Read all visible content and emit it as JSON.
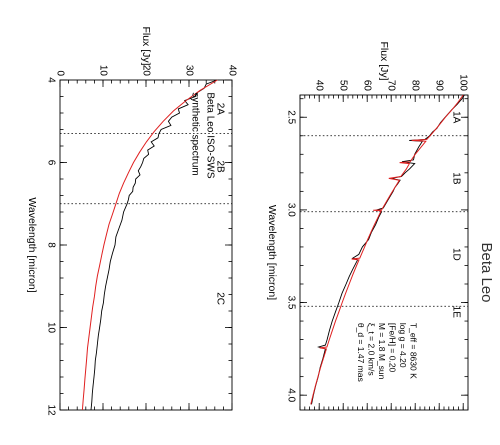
{
  "chart_data": [
    {
      "type": "line",
      "title": "Beta Leo",
      "xlabel": "Wavelength [micron]",
      "ylabel": "Flux [Jy]",
      "xlim": [
        2.38,
        4.08
      ],
      "ylim": [
        32,
        102
      ],
      "xticks": [
        2.5,
        3.0,
        3.5,
        4.0
      ],
      "yticks": [
        40,
        50,
        60,
        70,
        80,
        90,
        100
      ],
      "band_dividers": [
        2.6,
        3.01,
        3.52
      ],
      "bands": [
        {
          "label": "1A",
          "x": 2.5
        },
        {
          "label": "1B",
          "x": 2.83
        },
        {
          "label": "1D",
          "x": 3.24
        },
        {
          "label": "1E",
          "x": 3.55
        }
      ],
      "stellar_params": [
        "T_eff = 8630 K",
        "log g = 4.20",
        "[Fe/H] = 0.20",
        "M = 1.8 M_sun",
        "ξ_t = 2.0 km/s",
        "θ_d = 1.47 mas"
      ],
      "series": [
        {
          "name": "",
          "color": "#000000",
          "x": [
            2.38,
            2.4,
            2.43,
            2.46,
            2.5,
            2.53,
            2.56,
            2.58,
            2.6,
            2.62,
            2.625,
            2.63,
            2.66,
            2.7,
            2.73,
            2.74,
            2.75,
            2.78,
            2.8,
            2.82,
            2.83,
            2.84,
            2.86,
            2.88,
            2.9,
            2.95,
            2.99,
            3.0,
            3.01,
            3.04,
            3.08,
            3.12,
            3.16,
            3.2,
            3.24,
            3.26,
            3.27,
            3.28,
            3.32,
            3.36,
            3.4,
            3.45,
            3.5,
            3.55,
            3.6,
            3.65,
            3.7,
            3.73,
            3.74,
            3.75,
            3.8,
            3.85,
            3.9,
            3.95,
            4.0,
            4.05
          ],
          "y": [
            100.5,
            99.5,
            97.5,
            95.2,
            92.5,
            90.5,
            89.0,
            87.2,
            86.0,
            84.0,
            77.5,
            83.0,
            81.5,
            79.8,
            79.3,
            74.5,
            79.8,
            77.6,
            75.8,
            74.3,
            70.0,
            73.7,
            72.7,
            71.5,
            70.8,
            68.5,
            66.7,
            64.0,
            66.0,
            64.8,
            63.5,
            61.8,
            60.6,
            58.0,
            56.5,
            54.0,
            56.0,
            55.6,
            54.0,
            52.5,
            51.2,
            49.5,
            48.2,
            46.8,
            45.4,
            44.3,
            43.3,
            42.6,
            39.8,
            42.6,
            41.6,
            40.4,
            39.6,
            38.5,
            37.6,
            36.8
          ]
        },
        {
          "name": "",
          "color": "#e02020",
          "x": [
            2.38,
            2.42,
            2.46,
            2.5,
            2.55,
            2.6,
            2.62,
            2.625,
            2.63,
            2.66,
            2.7,
            2.74,
            2.745,
            2.75,
            2.78,
            2.82,
            2.83,
            2.84,
            2.88,
            2.92,
            2.96,
            3.0,
            3.002,
            3.005,
            3.04,
            3.08,
            3.12,
            3.16,
            3.2,
            3.26,
            3.265,
            3.27,
            3.3,
            3.35,
            3.4,
            3.45,
            3.5,
            3.55,
            3.6,
            3.65,
            3.7,
            3.74,
            3.745,
            3.75,
            3.8,
            3.85,
            3.9,
            3.95,
            4.0,
            4.05
          ],
          "y": [
            100.0,
            97.8,
            95.3,
            92.6,
            89.5,
            86.2,
            84.8,
            78.5,
            84.4,
            82.5,
            80.0,
            77.9,
            73.5,
            77.6,
            76.3,
            74.0,
            69.0,
            73.4,
            71.5,
            69.6,
            67.8,
            66.0,
            62.5,
            65.8,
            64.5,
            63.0,
            61.6,
            60.2,
            58.9,
            56.9,
            53.5,
            56.6,
            55.6,
            54.0,
            52.5,
            51.0,
            49.6,
            48.2,
            46.8,
            45.5,
            44.2,
            43.2,
            40.2,
            43.0,
            41.8,
            40.6,
            39.5,
            38.4,
            37.4,
            36.5
          ]
        }
      ]
    },
    {
      "type": "line",
      "title": "",
      "xlabel": "Wavelength [micron]",
      "ylabel": "Flux [Jy]",
      "xlim": [
        4.0,
        12.0
      ],
      "ylim": [
        0,
        40
      ],
      "xticks": [
        4,
        6,
        8,
        10,
        12
      ],
      "yticks": [
        0,
        10,
        20,
        30,
        40
      ],
      "band_dividers": [
        5.3,
        7.0
      ],
      "bands": [
        {
          "label": "2A",
          "x": 4.7
        },
        {
          "label": "2B",
          "x": 6.1
        },
        {
          "label": "2C",
          "x": 9.3
        }
      ],
      "legend": [
        "Beta Leo ISO-SWS",
        "synthetic spectrum"
      ],
      "series": [
        {
          "name": "Beta Leo ISO-SWS",
          "color": "#000000",
          "x": [
            4.0,
            4.1,
            4.2,
            4.3,
            4.4,
            4.5,
            4.6,
            4.7,
            4.8,
            4.9,
            5.0,
            5.1,
            5.2,
            5.3,
            5.4,
            5.5,
            5.6,
            5.7,
            5.8,
            5.9,
            6.0,
            6.1,
            6.2,
            6.3,
            6.4,
            6.5,
            6.6,
            6.7,
            6.8,
            6.9,
            7.0,
            7.2,
            7.4,
            7.6,
            7.8,
            8.0,
            8.2,
            8.4,
            8.6,
            8.8,
            9.0,
            9.2,
            9.4,
            9.6,
            9.8,
            10.0,
            10.2,
            10.4,
            10.6,
            10.8,
            11.0,
            11.2,
            11.4,
            11.6,
            11.8,
            12.0
          ],
          "y": [
            36.5,
            34.0,
            33.5,
            32.0,
            31.5,
            29.0,
            29.8,
            27.5,
            27.8,
            26.0,
            25.2,
            25.8,
            23.5,
            23.0,
            22.8,
            21.2,
            21.9,
            20.4,
            20.6,
            19.5,
            19.2,
            18.8,
            18.2,
            18.6,
            17.6,
            17.5,
            17.0,
            16.9,
            16.1,
            15.9,
            15.6,
            14.8,
            14.4,
            13.7,
            13.0,
            12.8,
            12.2,
            11.7,
            11.4,
            11.0,
            10.6,
            10.3,
            10.1,
            9.7,
            9.5,
            9.2,
            8.9,
            8.7,
            8.5,
            8.2,
            8.1,
            7.9,
            7.7,
            7.5,
            7.4,
            7.2
          ]
        },
        {
          "name": "synthetic spectrum",
          "color": "#e02020",
          "x": [
            4.0,
            4.25,
            4.5,
            4.75,
            5.0,
            5.25,
            5.5,
            5.75,
            6.0,
            6.25,
            6.5,
            6.75,
            7.0,
            7.25,
            7.5,
            7.75,
            8.0,
            8.25,
            8.5,
            8.75,
            9.0,
            9.25,
            9.5,
            9.75,
            10.0,
            10.25,
            10.5,
            10.75,
            11.0,
            11.25,
            11.5,
            11.75,
            12.0
          ],
          "y": [
            36.6,
            32.6,
            29.3,
            26.4,
            24.0,
            21.9,
            20.1,
            18.5,
            17.1,
            15.9,
            14.8,
            13.8,
            13.0,
            12.2,
            11.4,
            10.8,
            10.2,
            9.7,
            9.2,
            8.7,
            8.3,
            8.0,
            7.6,
            7.3,
            7.0,
            6.7,
            6.4,
            6.2,
            6.0,
            5.8,
            5.6,
            5.4,
            5.2
          ]
        }
      ]
    }
  ]
}
